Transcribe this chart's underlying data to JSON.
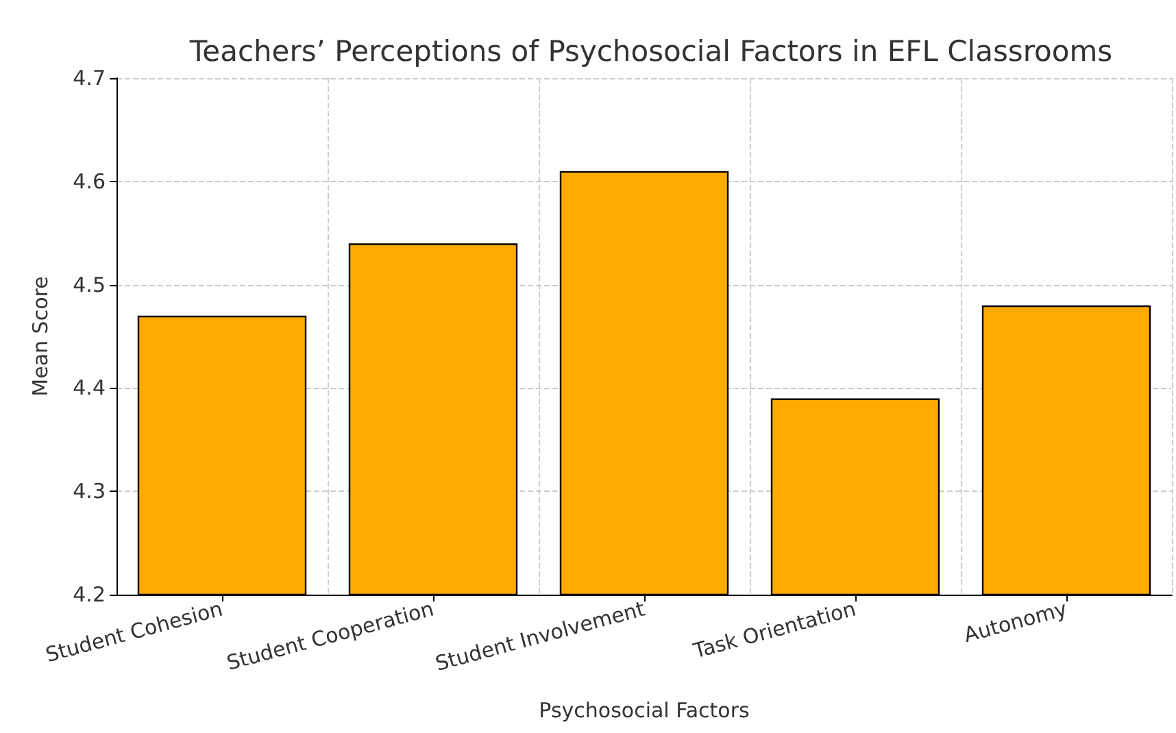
{
  "chart_data": {
    "type": "bar",
    "title": "Teachers’ Perceptions of Psychosocial Factors in EFL Classrooms",
    "xlabel": "Psychosocial Factors",
    "ylabel": "Mean Score",
    "categories": [
      "Student Cohesion",
      "Student Cooperation",
      "Student Involvement",
      "Task Orientation",
      "Autonomy"
    ],
    "values": [
      4.47,
      4.54,
      4.61,
      4.39,
      4.48
    ],
    "color": "#ffaa00",
    "ylim": [
      4.2,
      4.7
    ],
    "yticks": [
      4.2,
      4.3,
      4.4,
      4.5,
      4.6,
      4.7
    ],
    "grid": true
  }
}
